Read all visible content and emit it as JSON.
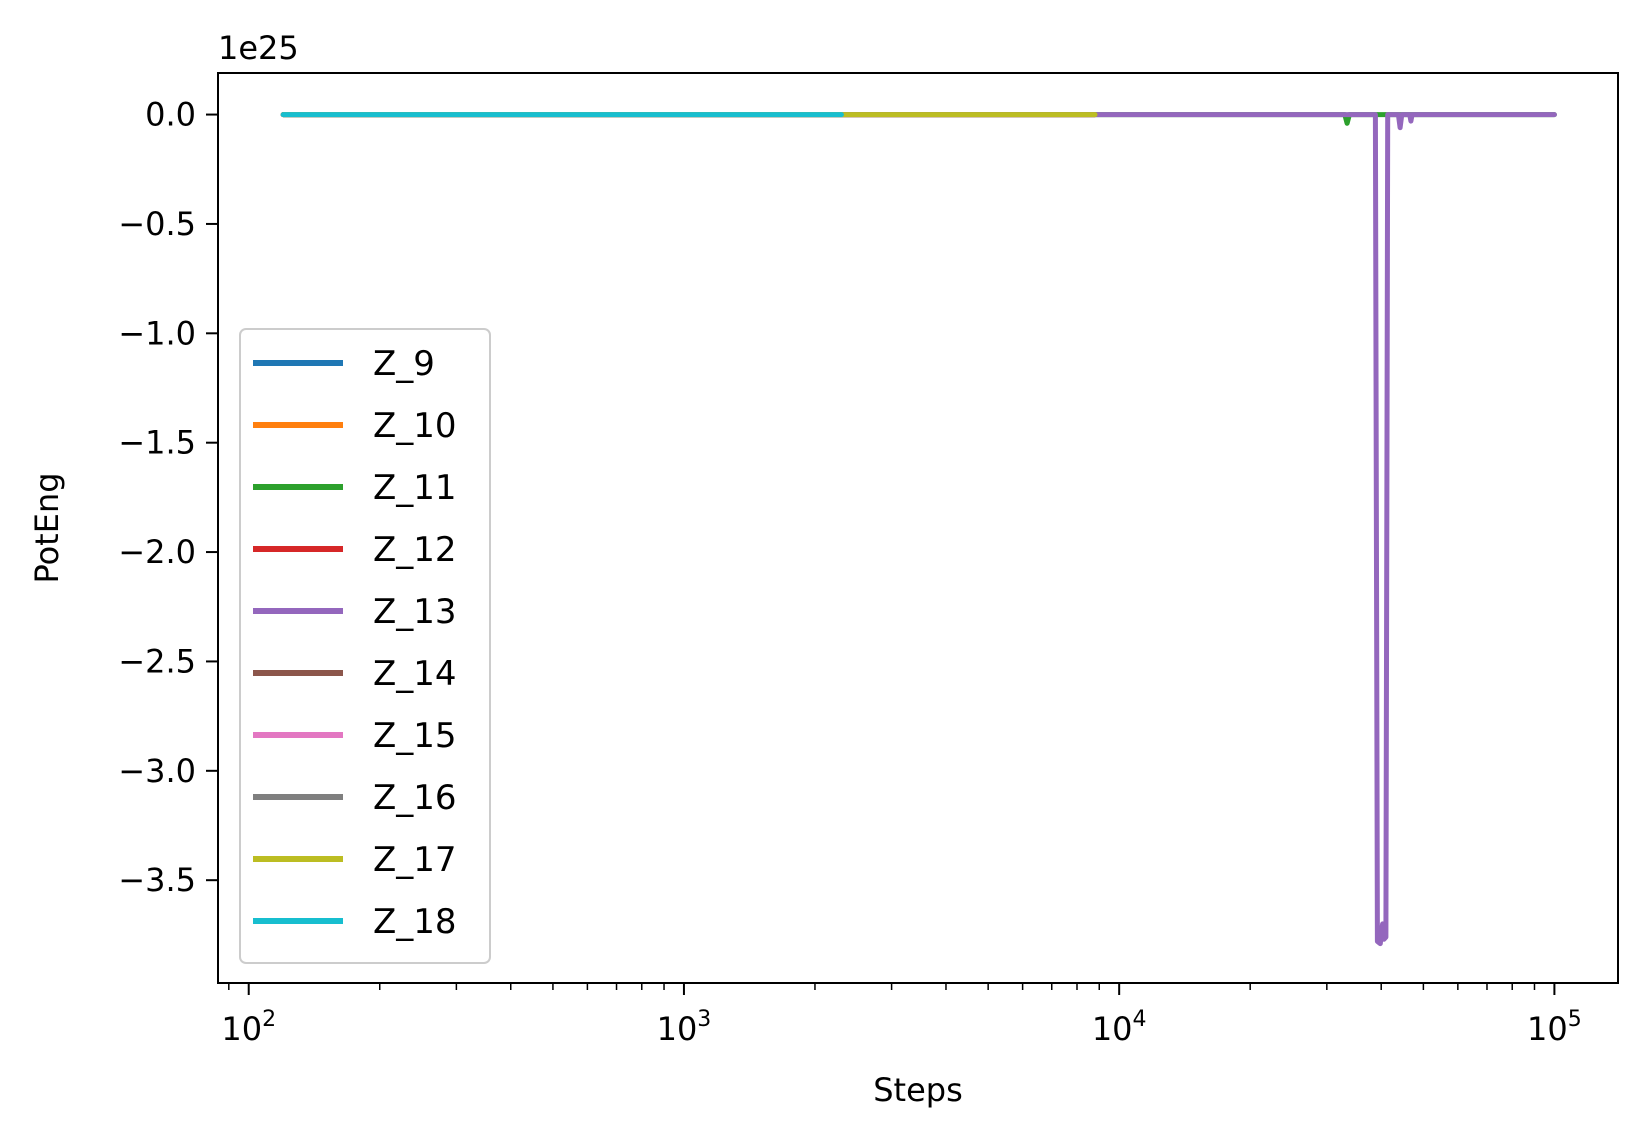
{
  "chart_data": {
    "type": "line",
    "title": "",
    "xlabel": "Steps",
    "ylabel": "PotEng",
    "x_scale": "log",
    "xlim": [
      85,
      140000
    ],
    "ylim": [
      -3.97e+25,
      1.9e+24
    ],
    "y_offset_label": "1e25",
    "x_ticks": [
      {
        "value": 100,
        "base": "10",
        "exp": "2"
      },
      {
        "value": 1000,
        "base": "10",
        "exp": "3"
      },
      {
        "value": 10000,
        "base": "10",
        "exp": "4"
      },
      {
        "value": 100000,
        "base": "10",
        "exp": "5"
      }
    ],
    "y_ticks": [
      {
        "value": 0.0,
        "label": "0.0"
      },
      {
        "value": -5e+24,
        "label": "−0.5"
      },
      {
        "value": -1e+25,
        "label": "−1.0"
      },
      {
        "value": -1.5e+25,
        "label": "−1.5"
      },
      {
        "value": -2e+25,
        "label": "−2.0"
      },
      {
        "value": -2.5e+25,
        "label": "−2.5"
      },
      {
        "value": -3e+25,
        "label": "−3.0"
      },
      {
        "value": -3.5e+25,
        "label": "−3.5"
      }
    ],
    "grid": false,
    "legend_position": "lower-left",
    "series": [
      {
        "name": "Z_9",
        "color": "#1f77b4",
        "points": [
          [
            120,
            0
          ],
          [
            1000,
            0
          ],
          [
            8800,
            0
          ]
        ]
      },
      {
        "name": "Z_10",
        "color": "#ff7f0e",
        "points": [
          [
            120,
            0
          ],
          [
            1000,
            0
          ],
          [
            8800,
            0
          ]
        ]
      },
      {
        "name": "Z_11",
        "color": "#2ca02c",
        "points": [
          [
            120,
            0
          ],
          [
            10000,
            0
          ],
          [
            33000,
            0
          ],
          [
            33400,
            -4e+23
          ],
          [
            33800,
            0
          ],
          [
            60000,
            0
          ],
          [
            100000,
            0
          ]
        ]
      },
      {
        "name": "Z_12",
        "color": "#d62728",
        "points": [
          [
            120,
            0
          ],
          [
            1000,
            0
          ],
          [
            8800,
            0
          ]
        ]
      },
      {
        "name": "Z_13",
        "color": "#9467bd",
        "points": [
          [
            120,
            0
          ],
          [
            8800,
            0
          ],
          [
            13000,
            0
          ],
          [
            38800,
            0
          ],
          [
            39200,
            -3.78e+25
          ],
          [
            39800,
            -3.79e+25
          ],
          [
            40300,
            -3.7e+25
          ],
          [
            40600,
            -3.77e+25
          ],
          [
            41000,
            -3.76e+25
          ],
          [
            41400,
            0
          ],
          [
            43800,
            0
          ],
          [
            44200,
            -6e+23
          ],
          [
            44600,
            0
          ],
          [
            46500,
            0
          ],
          [
            46800,
            -3e+23
          ],
          [
            47100,
            0
          ],
          [
            60000,
            0
          ],
          [
            100000,
            0
          ]
        ]
      },
      {
        "name": "Z_14",
        "color": "#8c564b",
        "points": [
          [
            120,
            0
          ],
          [
            1000,
            0
          ],
          [
            8800,
            0
          ]
        ]
      },
      {
        "name": "Z_15",
        "color": "#e377c2",
        "points": [
          [
            120,
            0
          ],
          [
            1000,
            0
          ],
          [
            8800,
            0
          ]
        ]
      },
      {
        "name": "Z_16",
        "color": "#7f7f7f",
        "points": [
          [
            120,
            0
          ],
          [
            1000,
            0
          ],
          [
            8800,
            0
          ]
        ]
      },
      {
        "name": "Z_17",
        "color": "#bcbd22",
        "points": [
          [
            120,
            0
          ],
          [
            2300,
            0
          ],
          [
            8800,
            0
          ]
        ]
      },
      {
        "name": "Z_18",
        "color": "#17becf",
        "points": [
          [
            120,
            0
          ],
          [
            1000,
            0
          ],
          [
            2300,
            0
          ]
        ]
      }
    ]
  }
}
